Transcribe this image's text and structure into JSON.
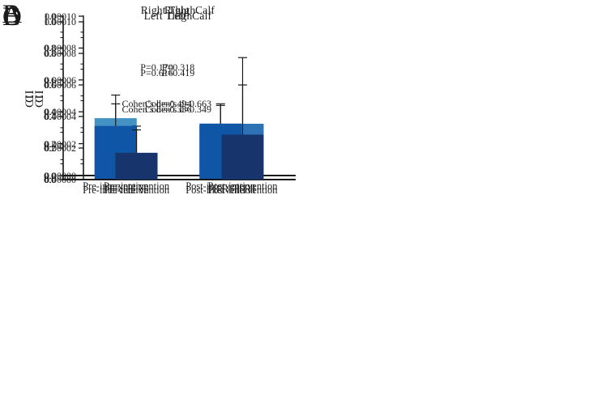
{
  "figure": {
    "background": "#ffffff",
    "text_color": "#1a1a1a",
    "axis_color": "#1a1a1a"
  },
  "chart_data": [
    {
      "type": "bar",
      "panel_label": "A",
      "title": "Right Thigh",
      "annotations": [
        "P=0.170",
        "Cohen’s d=-0.494"
      ],
      "ylabel": "CI",
      "xlabel": "",
      "categories": [
        "Pre-intervention",
        "Post-intervention"
      ],
      "values": [
        0.36,
        0.31
      ],
      "errors_plus": [
        0.145,
        0.14
      ],
      "ylim": [
        0,
        1.0
      ],
      "ytick_labels": [
        "0.0",
        "0.2",
        "0.4",
        "0.6",
        "0.8",
        "1.0"
      ],
      "minor_ticks": true,
      "grid": false,
      "legend": false,
      "bar_color": "#4491C4"
    },
    {
      "type": "bar",
      "panel_label": "B",
      "title": "Right  Calf",
      "annotations": [
        "P=0.318",
        "Cohen’s d=0.663"
      ],
      "ylabel": "CI",
      "xlabel": "",
      "categories": [
        "Pre-intervention",
        "Post-intervention"
      ],
      "values": [
        7.5e-06,
        3.25e-05
      ],
      "errors_plus": [
        2.35e-05,
        4.15e-05
      ],
      "ylim": [
        0,
        0.0001
      ],
      "ytick_labels": [
        "0.00000",
        "0.00002",
        "0.00004",
        "0.00006",
        "0.00008",
        "0.00010"
      ],
      "minor_ticks": true,
      "grid": false,
      "legend": false,
      "bar_color": "#2C72B4"
    },
    {
      "type": "bar",
      "panel_label": "C",
      "title": "Left Thigh",
      "annotations": [
        "P=0.616",
        "Cohen’s d=-0.336"
      ],
      "ylabel": "CI",
      "xlabel": "",
      "categories": [
        "Pre-intervention",
        "Post-intervention"
      ],
      "values": [
        0.34,
        0.355
      ],
      "errors_plus": [
        0.14,
        0.115
      ],
      "ylim": [
        0,
        1.0
      ],
      "ytick_labels": [
        "0.0",
        "0.2",
        "0.4",
        "0.6",
        "0.8",
        "1.0"
      ],
      "minor_ticks": true,
      "grid": false,
      "legend": false,
      "bar_color": "#0F57A6"
    },
    {
      "type": "bar",
      "panel_label": "D",
      "title": "Left  Calf",
      "annotations": [
        "P=0.419",
        "Cohen’s d=0.349"
      ],
      "ylabel": "CI",
      "xlabel": "",
      "categories": [
        "Pre-intervention",
        "Post-intervention"
      ],
      "values": [
        1.7e-05,
        2.85e-05
      ],
      "errors_plus": [
        1.45e-05,
        3.15e-05
      ],
      "ylim": [
        0,
        0.0001
      ],
      "ytick_labels": [
        "0.00000",
        "0.00002",
        "0.00004",
        "0.00006",
        "0.00008",
        "0.00010"
      ],
      "minor_ticks": true,
      "grid": false,
      "legend": false,
      "bar_color": "#17356C"
    }
  ]
}
